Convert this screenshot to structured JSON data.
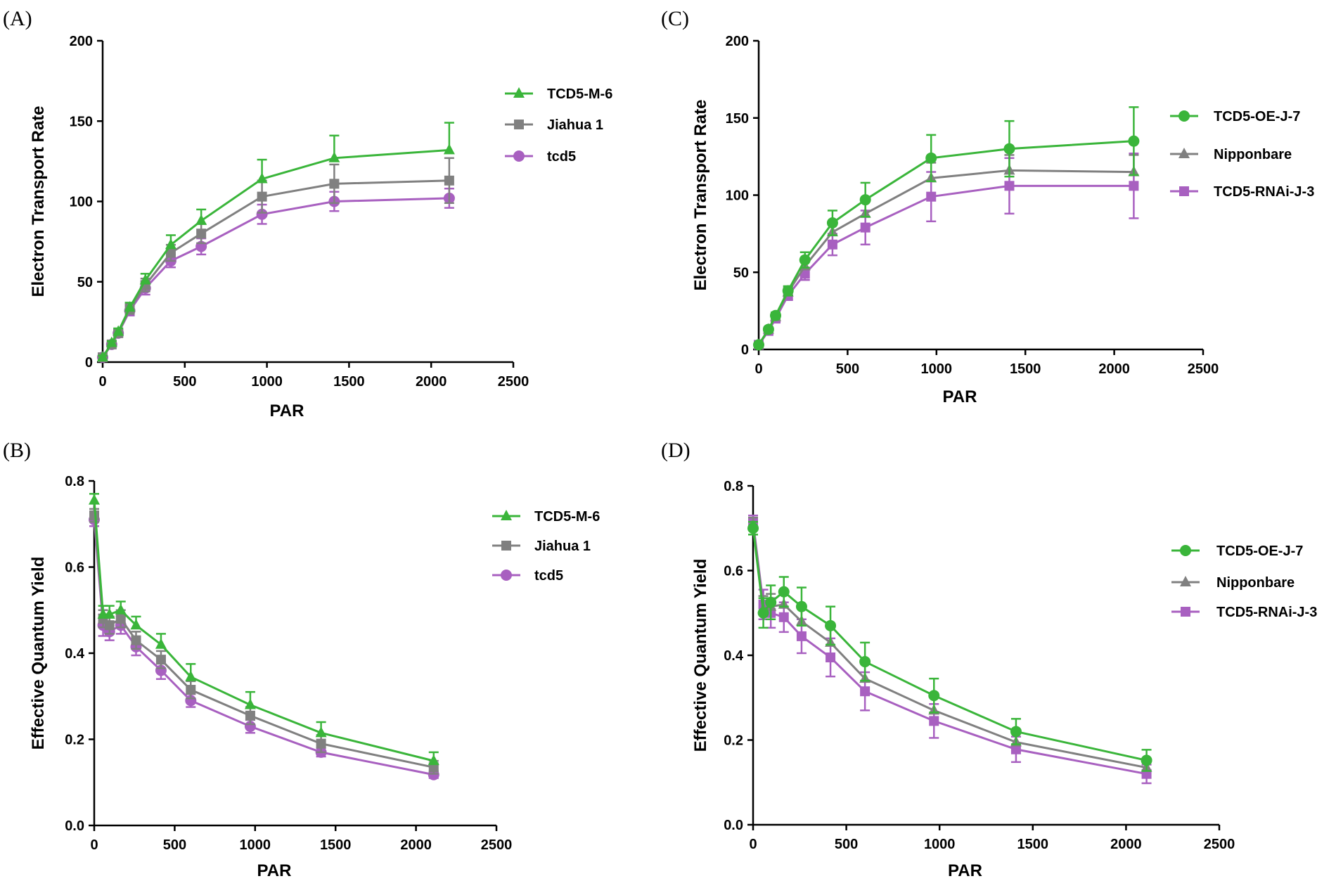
{
  "chart_data": [
    {
      "type": "line",
      "panel_label": "(A)",
      "xlabel": "PAR",
      "ylabel": "Electron Transport Rate",
      "xlim": [
        0,
        2500
      ],
      "ylim": [
        0,
        200
      ],
      "xticks": [
        0,
        500,
        1000,
        1500,
        2000,
        2500
      ],
      "yticks": [
        0,
        50,
        100,
        150,
        200
      ],
      "x": [
        0,
        55,
        95,
        165,
        260,
        415,
        600,
        970,
        1410,
        2110
      ],
      "legend_position": "right",
      "series": [
        {
          "name": "TCD5-M-6",
          "marker": "triangle",
          "color": "#3ab53a",
          "values": [
            3,
            12,
            19,
            34,
            51,
            73,
            88,
            114,
            127,
            132
          ],
          "errors": [
            1,
            1,
            2,
            3,
            4,
            6,
            7,
            12,
            14,
            17
          ]
        },
        {
          "name": "Jiahua 1",
          "marker": "square",
          "color": "#808080",
          "values": [
            3,
            11,
            18,
            33,
            48,
            68,
            80,
            103,
            111,
            113
          ],
          "errors": [
            1,
            1,
            2,
            3,
            4,
            5,
            6,
            10,
            12,
            14
          ]
        },
        {
          "name": "tcd5",
          "marker": "circle",
          "color": "#a860c0",
          "values": [
            3,
            11,
            18,
            32,
            46,
            63,
            72,
            92,
            100,
            102
          ],
          "errors": [
            1,
            1,
            2,
            3,
            4,
            4,
            5,
            6,
            6,
            6
          ]
        }
      ]
    },
    {
      "type": "line",
      "panel_label": "(B)",
      "xlabel": "PAR",
      "ylabel": "Effective Quantum Yield",
      "xlim": [
        0,
        2500
      ],
      "ylim": [
        0,
        0.8
      ],
      "xticks": [
        0,
        500,
        1000,
        1500,
        2000,
        2500
      ],
      "yticks": [
        0.0,
        0.2,
        0.4,
        0.6,
        0.8
      ],
      "x": [
        0,
        55,
        95,
        165,
        260,
        415,
        600,
        970,
        1410,
        2110
      ],
      "legend_position": "right",
      "series": [
        {
          "name": "TCD5-M-6",
          "marker": "triangle",
          "color": "#3ab53a",
          "values": [
            0.755,
            0.49,
            0.49,
            0.5,
            0.465,
            0.42,
            0.345,
            0.28,
            0.215,
            0.15
          ],
          "errors": [
            0.015,
            0.02,
            0.02,
            0.02,
            0.02,
            0.025,
            0.03,
            0.03,
            0.025,
            0.02
          ]
        },
        {
          "name": "Jiahua 1",
          "marker": "square",
          "color": "#808080",
          "values": [
            0.72,
            0.48,
            0.465,
            0.48,
            0.43,
            0.385,
            0.315,
            0.255,
            0.19,
            0.135
          ],
          "errors": [
            0.015,
            0.02,
            0.02,
            0.02,
            0.02,
            0.02,
            0.02,
            0.02,
            0.02,
            0.015
          ]
        },
        {
          "name": "tcd5",
          "marker": "circle",
          "color": "#a860c0",
          "values": [
            0.71,
            0.465,
            0.45,
            0.465,
            0.415,
            0.36,
            0.29,
            0.23,
            0.17,
            0.118
          ],
          "errors": [
            0.015,
            0.025,
            0.02,
            0.02,
            0.02,
            0.02,
            0.015,
            0.015,
            0.01,
            0.008
          ]
        }
      ]
    },
    {
      "type": "line",
      "panel_label": "(C)",
      "xlabel": "PAR",
      "ylabel": "Electron Transport Rate",
      "xlim": [
        0,
        2500
      ],
      "ylim": [
        0,
        200
      ],
      "xticks": [
        0,
        500,
        1000,
        1500,
        2000,
        2500
      ],
      "yticks": [
        0,
        50,
        100,
        150,
        200
      ],
      "x": [
        0,
        55,
        95,
        165,
        260,
        415,
        600,
        970,
        1410,
        2110
      ],
      "legend_position": "right",
      "series": [
        {
          "name": "TCD5-OE-J-7",
          "marker": "circle",
          "color": "#3ab53a",
          "values": [
            3,
            13,
            22,
            38,
            58,
            82,
            97,
            124,
            130,
            135
          ],
          "errors": [
            1,
            1,
            2,
            3,
            5,
            8,
            11,
            15,
            18,
            22
          ]
        },
        {
          "name": "Nipponbare",
          "marker": "triangle",
          "color": "#808080",
          "values": [
            3,
            13,
            21,
            37,
            54,
            76,
            88,
            111,
            116,
            115
          ],
          "errors": [
            1,
            1,
            2,
            3,
            4,
            6,
            8,
            10,
            10,
            11
          ]
        },
        {
          "name": "TCD5-RNAi-J-3",
          "marker": "square",
          "color": "#a860c0",
          "values": [
            3,
            12,
            20,
            35,
            49,
            68,
            79,
            99,
            106,
            106
          ],
          "errors": [
            1,
            1,
            2,
            3,
            4,
            7,
            11,
            16,
            18,
            21
          ]
        }
      ]
    },
    {
      "type": "line",
      "panel_label": "(D)",
      "xlabel": "PAR",
      "ylabel": "Effective Quantum Yield",
      "xlim": [
        0,
        2500
      ],
      "ylim": [
        0,
        0.8
      ],
      "xticks": [
        0,
        500,
        1000,
        1500,
        2000,
        2500
      ],
      "yticks": [
        0.0,
        0.2,
        0.4,
        0.6,
        0.8
      ],
      "x": [
        0,
        55,
        95,
        165,
        260,
        415,
        600,
        970,
        1410,
        2110
      ],
      "legend_position": "right",
      "series": [
        {
          "name": "TCD5-OE-J-7",
          "marker": "circle",
          "color": "#3ab53a",
          "values": [
            0.7,
            0.5,
            0.525,
            0.55,
            0.515,
            0.47,
            0.385,
            0.305,
            0.22,
            0.152
          ],
          "errors": [
            0.015,
            0.035,
            0.04,
            0.035,
            0.045,
            0.045,
            0.045,
            0.04,
            0.03,
            0.025
          ]
        },
        {
          "name": "Nipponbare",
          "marker": "triangle",
          "color": "#808080",
          "values": [
            0.71,
            0.51,
            0.515,
            0.52,
            0.48,
            0.43,
            0.345,
            0.27,
            0.195,
            0.135
          ],
          "errors": [
            0.015,
            0.03,
            0.03,
            0.03,
            0.035,
            0.035,
            0.035,
            0.035,
            0.03,
            0.02
          ]
        },
        {
          "name": "TCD5-RNAi-J-3",
          "marker": "square",
          "color": "#a860c0",
          "values": [
            0.715,
            0.52,
            0.5,
            0.49,
            0.445,
            0.395,
            0.315,
            0.245,
            0.178,
            0.12
          ],
          "errors": [
            0.015,
            0.035,
            0.035,
            0.035,
            0.04,
            0.045,
            0.045,
            0.04,
            0.03,
            0.022
          ]
        }
      ]
    }
  ]
}
